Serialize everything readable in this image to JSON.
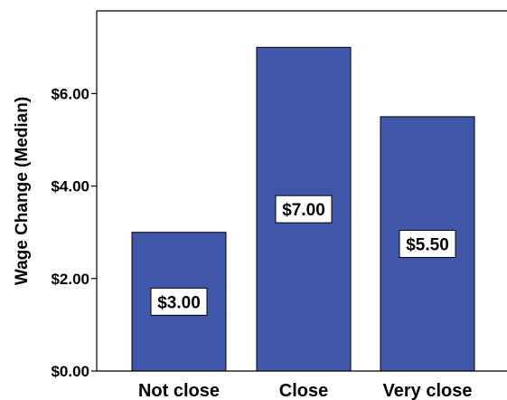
{
  "chart_data": {
    "type": "bar",
    "categories": [
      "Not close",
      "Close",
      "Very close"
    ],
    "values": [
      3.0,
      7.0,
      5.5
    ],
    "data_labels": [
      "$3.00",
      "$7.00",
      "$5.50"
    ],
    "title": "",
    "xlabel": "",
    "ylabel": "Wage Change (Median)",
    "ylim": [
      0,
      7.5
    ],
    "y_ticks": [
      0,
      2,
      4,
      6
    ],
    "y_tick_labels": [
      "$0.00",
      "$2.00",
      "$4.00",
      "$6.00"
    ],
    "bar_color": "#3f58aa",
    "grid": false,
    "legend": "none"
  }
}
